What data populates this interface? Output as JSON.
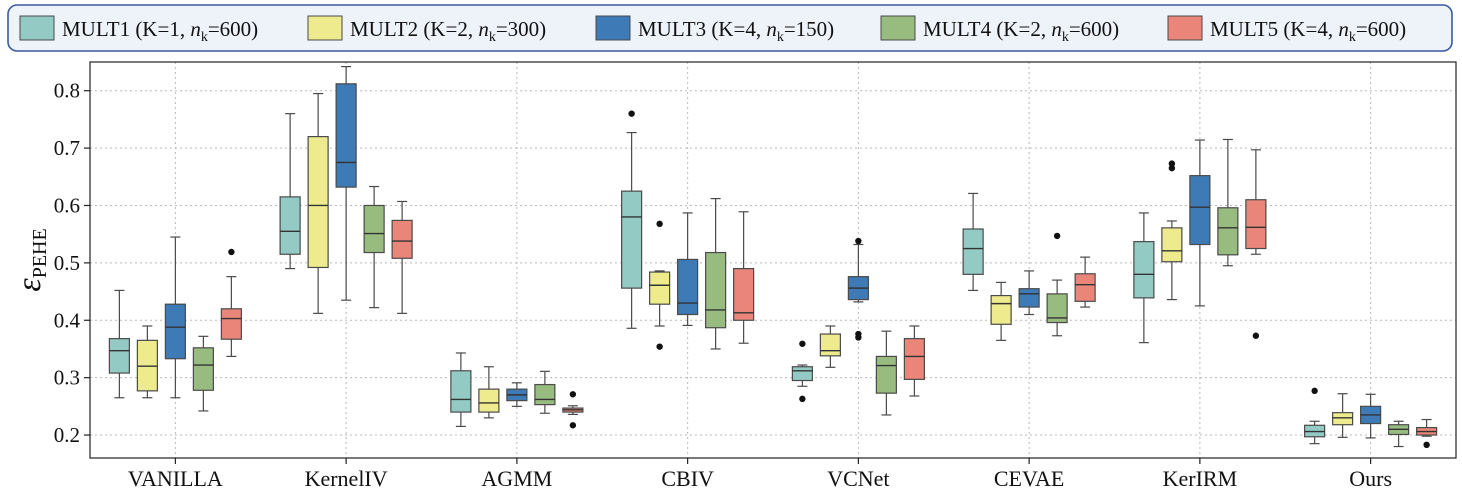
{
  "chart_data": {
    "type": "box",
    "ylabel": "ε",
    "ylabel_subscript": "PEHE",
    "ylim": [
      0.16,
      0.85
    ],
    "yticks": [
      0.2,
      0.3,
      0.4,
      0.5,
      0.6,
      0.7,
      0.8
    ],
    "grid": true,
    "legend_position": "top",
    "categories": [
      "VANILLA",
      "KernelIV",
      "AGMM",
      "CBIV",
      "VCNet",
      "CEVAE",
      "KerIRM",
      "Ours"
    ],
    "series": [
      {
        "name": "MULT1",
        "params": {
          "before": " (K=1, ",
          "n": "n",
          "sub": "k",
          "after": "=600)"
        },
        "color": "#93cbc4"
      },
      {
        "name": "MULT2",
        "params": {
          "before": " (K=2, ",
          "n": "n",
          "sub": "k",
          "after": "=300)"
        },
        "color": "#eeeb8f"
      },
      {
        "name": "MULT3",
        "params": {
          "before": " (K=4, ",
          "n": "n",
          "sub": "k",
          "after": "=150)"
        },
        "color": "#3e7ab5"
      },
      {
        "name": "MULT4",
        "params": {
          "before": " (K=2, ",
          "n": "n",
          "sub": "k",
          "after": "=600)"
        },
        "color": "#98bc7f"
      },
      {
        "name": "MULT5",
        "params": {
          "before": " (K=4, ",
          "n": "n",
          "sub": "k",
          "after": "=600)"
        },
        "color": "#ea8679"
      }
    ],
    "boxes": [
      [
        {
          "whislo": 0.265,
          "q1": 0.308,
          "med": 0.347,
          "q3": 0.368,
          "whishi": 0.452,
          "fliers": []
        },
        {
          "whislo": 0.265,
          "q1": 0.277,
          "med": 0.32,
          "q3": 0.365,
          "whishi": 0.39,
          "fliers": []
        },
        {
          "whislo": 0.265,
          "q1": 0.333,
          "med": 0.388,
          "q3": 0.428,
          "whishi": 0.545,
          "fliers": []
        },
        {
          "whislo": 0.242,
          "q1": 0.278,
          "med": 0.322,
          "q3": 0.352,
          "whishi": 0.372,
          "fliers": []
        },
        {
          "whislo": 0.337,
          "q1": 0.367,
          "med": 0.403,
          "q3": 0.42,
          "whishi": 0.476,
          "fliers": [
            0.519
          ]
        }
      ],
      [
        {
          "whislo": 0.49,
          "q1": 0.515,
          "med": 0.555,
          "q3": 0.615,
          "whishi": 0.76,
          "fliers": []
        },
        {
          "whislo": 0.412,
          "q1": 0.492,
          "med": 0.6,
          "q3": 0.72,
          "whishi": 0.795,
          "fliers": []
        },
        {
          "whislo": 0.435,
          "q1": 0.632,
          "med": 0.675,
          "q3": 0.812,
          "whishi": 0.842,
          "fliers": []
        },
        {
          "whislo": 0.422,
          "q1": 0.518,
          "med": 0.551,
          "q3": 0.6,
          "whishi": 0.633,
          "fliers": []
        },
        {
          "whislo": 0.412,
          "q1": 0.508,
          "med": 0.538,
          "q3": 0.574,
          "whishi": 0.607,
          "fliers": []
        }
      ],
      [
        {
          "whislo": 0.215,
          "q1": 0.24,
          "med": 0.262,
          "q3": 0.312,
          "whishi": 0.343,
          "fliers": []
        },
        {
          "whislo": 0.23,
          "q1": 0.24,
          "med": 0.256,
          "q3": 0.28,
          "whishi": 0.319,
          "fliers": []
        },
        {
          "whislo": 0.25,
          "q1": 0.26,
          "med": 0.27,
          "q3": 0.28,
          "whishi": 0.291,
          "fliers": []
        },
        {
          "whislo": 0.238,
          "q1": 0.253,
          "med": 0.262,
          "q3": 0.288,
          "whishi": 0.311,
          "fliers": []
        },
        {
          "whislo": 0.236,
          "q1": 0.24,
          "med": 0.244,
          "q3": 0.247,
          "whishi": 0.251,
          "fliers": [
            0.271,
            0.217
          ]
        }
      ],
      [
        {
          "whislo": 0.386,
          "q1": 0.456,
          "med": 0.58,
          "q3": 0.625,
          "whishi": 0.727,
          "fliers": [
            0.76
          ]
        },
        {
          "whislo": 0.39,
          "q1": 0.428,
          "med": 0.461,
          "q3": 0.484,
          "whishi": 0.486,
          "fliers": [
            0.568,
            0.354
          ]
        },
        {
          "whislo": 0.391,
          "q1": 0.41,
          "med": 0.43,
          "q3": 0.506,
          "whishi": 0.587,
          "fliers": []
        },
        {
          "whislo": 0.35,
          "q1": 0.387,
          "med": 0.418,
          "q3": 0.518,
          "whishi": 0.612,
          "fliers": []
        },
        {
          "whislo": 0.36,
          "q1": 0.4,
          "med": 0.413,
          "q3": 0.49,
          "whishi": 0.589,
          "fliers": []
        }
      ],
      [
        {
          "whislo": 0.285,
          "q1": 0.295,
          "med": 0.312,
          "q3": 0.319,
          "whishi": 0.322,
          "fliers": [
            0.359,
            0.263
          ]
        },
        {
          "whislo": 0.318,
          "q1": 0.338,
          "med": 0.347,
          "q3": 0.376,
          "whishi": 0.39,
          "fliers": []
        },
        {
          "whislo": 0.432,
          "q1": 0.436,
          "med": 0.456,
          "q3": 0.476,
          "whishi": 0.532,
          "fliers": [
            0.538,
            0.376,
            0.37
          ]
        },
        {
          "whislo": 0.235,
          "q1": 0.273,
          "med": 0.321,
          "q3": 0.337,
          "whishi": 0.381,
          "fliers": []
        },
        {
          "whislo": 0.268,
          "q1": 0.297,
          "med": 0.337,
          "q3": 0.368,
          "whishi": 0.39,
          "fliers": []
        }
      ],
      [
        {
          "whislo": 0.452,
          "q1": 0.48,
          "med": 0.525,
          "q3": 0.559,
          "whishi": 0.621,
          "fliers": []
        },
        {
          "whislo": 0.365,
          "q1": 0.393,
          "med": 0.429,
          "q3": 0.443,
          "whishi": 0.466,
          "fliers": []
        },
        {
          "whislo": 0.41,
          "q1": 0.423,
          "med": 0.446,
          "q3": 0.455,
          "whishi": 0.486,
          "fliers": []
        },
        {
          "whislo": 0.373,
          "q1": 0.396,
          "med": 0.404,
          "q3": 0.446,
          "whishi": 0.47,
          "fliers": [
            0.547
          ]
        },
        {
          "whislo": 0.423,
          "q1": 0.433,
          "med": 0.462,
          "q3": 0.481,
          "whishi": 0.51,
          "fliers": []
        }
      ],
      [
        {
          "whislo": 0.361,
          "q1": 0.439,
          "med": 0.48,
          "q3": 0.537,
          "whishi": 0.587,
          "fliers": []
        },
        {
          "whislo": 0.436,
          "q1": 0.502,
          "med": 0.521,
          "q3": 0.561,
          "whishi": 0.573,
          "fliers": [
            0.673,
            0.665
          ]
        },
        {
          "whislo": 0.425,
          "q1": 0.532,
          "med": 0.597,
          "q3": 0.652,
          "whishi": 0.714,
          "fliers": []
        },
        {
          "whislo": 0.495,
          "q1": 0.514,
          "med": 0.561,
          "q3": 0.596,
          "whishi": 0.715,
          "fliers": []
        },
        {
          "whislo": 0.515,
          "q1": 0.525,
          "med": 0.562,
          "q3": 0.61,
          "whishi": 0.697,
          "fliers": [
            0.373
          ]
        }
      ],
      [
        {
          "whislo": 0.185,
          "q1": 0.197,
          "med": 0.206,
          "q3": 0.217,
          "whishi": 0.224,
          "fliers": [
            0.277
          ]
        },
        {
          "whislo": 0.196,
          "q1": 0.218,
          "med": 0.23,
          "q3": 0.239,
          "whishi": 0.272,
          "fliers": []
        },
        {
          "whislo": 0.195,
          "q1": 0.22,
          "med": 0.235,
          "q3": 0.25,
          "whishi": 0.271,
          "fliers": []
        },
        {
          "whislo": 0.18,
          "q1": 0.201,
          "med": 0.21,
          "q3": 0.218,
          "whishi": 0.224,
          "fliers": []
        },
        {
          "whislo": 0.198,
          "q1": 0.2,
          "med": 0.206,
          "q3": 0.213,
          "whishi": 0.227,
          "fliers": [
            0.183
          ]
        }
      ]
    ]
  }
}
